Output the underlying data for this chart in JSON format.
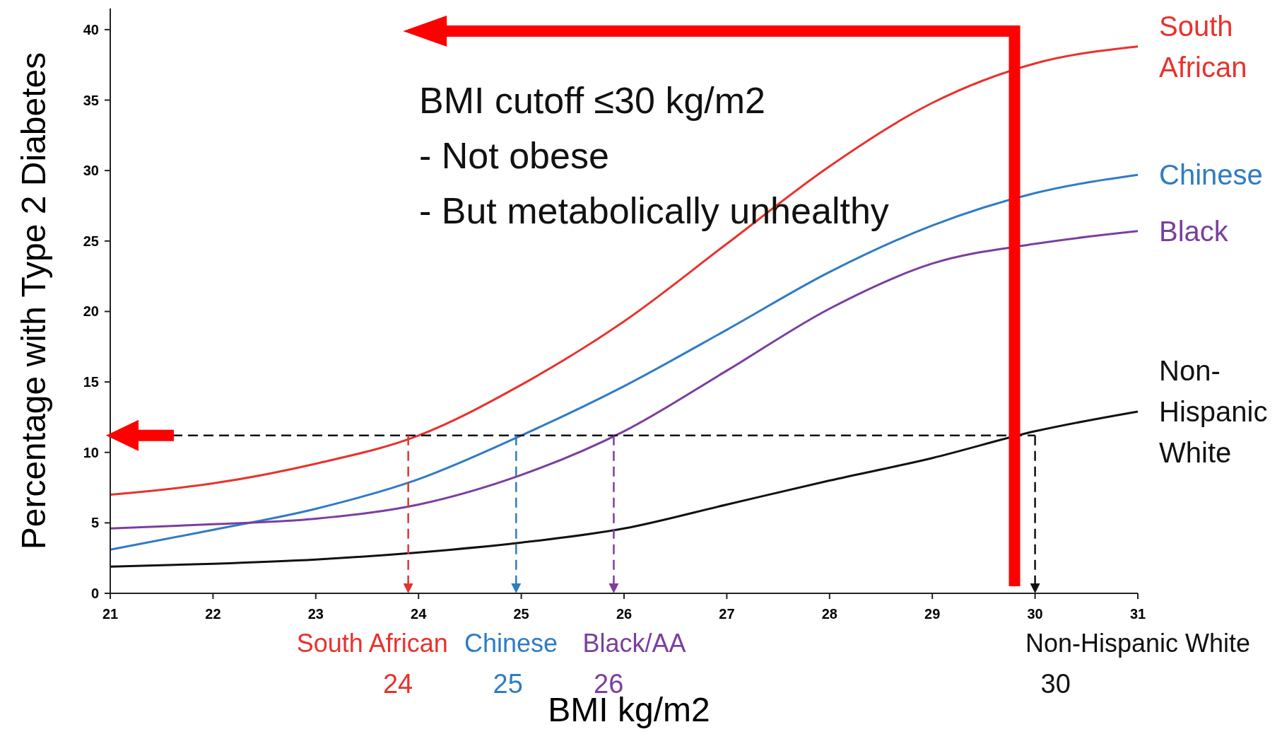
{
  "chart_data": {
    "type": "line",
    "xlabel": "BMI kg/m2",
    "ylabel": "Percentage with Type 2 Diabetes",
    "x": [
      21,
      22,
      23,
      24,
      25,
      26,
      27,
      28,
      29,
      30,
      31
    ],
    "series": [
      {
        "name": "South African",
        "color": "#e8322c",
        "values": [
          7.0,
          7.8,
          9.2,
          11.2,
          14.8,
          19.3,
          24.8,
          30.3,
          34.8,
          37.6,
          38.8
        ]
      },
      {
        "name": "Chinese",
        "color": "#2f7cc4",
        "values": [
          3.1,
          4.5,
          6.0,
          8.1,
          11.2,
          14.7,
          18.7,
          22.8,
          26.1,
          28.4,
          29.7
        ]
      },
      {
        "name": "Black",
        "color": "#7b3ea0",
        "values": [
          4.6,
          4.9,
          5.3,
          6.3,
          8.4,
          11.5,
          15.8,
          20.2,
          23.4,
          24.8,
          25.7
        ]
      },
      {
        "name": "Non-Hispanic White",
        "color": "#111111",
        "values": [
          1.9,
          2.1,
          2.4,
          2.9,
          3.6,
          4.6,
          6.3,
          8.0,
          9.6,
          11.5,
          12.9
        ]
      }
    ],
    "xlim": [
      21,
      31
    ],
    "xticks": [
      21,
      22,
      23,
      24,
      25,
      26,
      27,
      28,
      29,
      30,
      31
    ],
    "ylim": [
      0,
      41.5
    ],
    "yticks": [
      0,
      5,
      10,
      15,
      20,
      25,
      30,
      35,
      40
    ],
    "grid": false,
    "legend": false,
    "marker": "none",
    "line_style": "solid",
    "ref_lines": [
      {
        "axis": "y",
        "value": 11.2,
        "color": "#111111",
        "line_style": "dashed"
      },
      {
        "axis": "x",
        "value": 23.9,
        "color": "#e8322c",
        "line_style": "dashed"
      },
      {
        "axis": "x",
        "value": 24.95,
        "color": "#2f7cc4",
        "line_style": "dashed"
      },
      {
        "axis": "x",
        "value": 25.9,
        "color": "#7b3ea0",
        "line_style": "dashed"
      },
      {
        "axis": "x",
        "value": 30,
        "color": "#111111",
        "line_style": "dashed"
      }
    ],
    "annotations": [
      "BMI cutoff ≤30 kg/m2",
      "- Not obese",
      "- But metabolically unhealthy",
      "South African",
      "Chinese",
      "Black/AA",
      "Non-Hispanic White",
      "24",
      "25",
      "26",
      "30"
    ]
  }
}
